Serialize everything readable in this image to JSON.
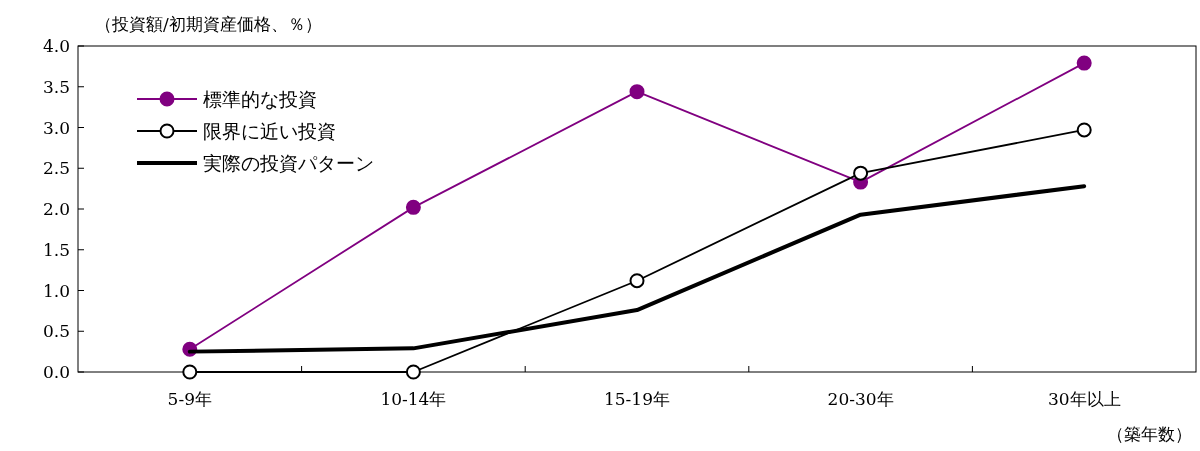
{
  "chart_data": {
    "type": "line",
    "ylabel": "（投資額/初期資産価格、％）",
    "xlabel": "（築年数）",
    "categories": [
      "5-9年",
      "10-14年",
      "15-19年",
      "20-30年",
      "30年以上"
    ],
    "ylim": [
      0,
      4
    ],
    "yticks": [
      {
        "value": 0,
        "label": "0.0"
      },
      {
        "value": 0.5,
        "label": "0.5"
      },
      {
        "value": 1,
        "label": "1.0"
      },
      {
        "value": 1.5,
        "label": "1.5"
      },
      {
        "value": 2,
        "label": "2.0"
      },
      {
        "value": 2.5,
        "label": "2.5"
      },
      {
        "value": 3,
        "label": "3.0"
      },
      {
        "value": 3.5,
        "label": "3.5"
      },
      {
        "value": 4,
        "label": "4.0"
      }
    ],
    "grid": false,
    "legend": "top left",
    "series": [
      {
        "name": "標準的な投資",
        "color": "#800080",
        "marker": "circle",
        "values": [
          0.28,
          2.02,
          3.44,
          2.33,
          3.79
        ]
      },
      {
        "name": "限界に近い投資",
        "color": "#000000",
        "marker": "circle",
        "values": [
          0,
          0,
          1.12,
          2.44,
          2.97
        ]
      },
      {
        "name": "実際の投資パターン",
        "color": "#000000",
        "marker": "none",
        "values": [
          0.25,
          0.29,
          0.76,
          1.93,
          2.28
        ]
      }
    ]
  }
}
